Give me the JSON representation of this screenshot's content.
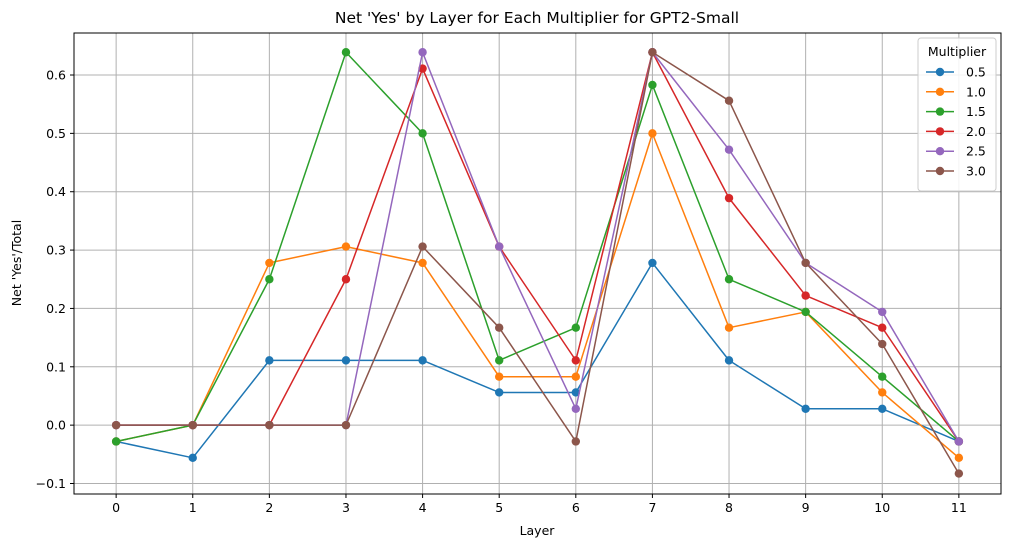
{
  "chart_data": {
    "type": "line",
    "title": "Net 'Yes' by Layer for Each Multiplier for GPT2-Small",
    "xlabel": "Layer",
    "ylabel": "Net 'Yes'/Total",
    "x": [
      0,
      1,
      2,
      3,
      4,
      5,
      6,
      7,
      8,
      9,
      10,
      11
    ],
    "xlim": [
      -0.55,
      11.55
    ],
    "ylim": [
      -0.118,
      0.672
    ],
    "yticks": [
      -0.1,
      0.0,
      0.1,
      0.2,
      0.3,
      0.4,
      0.5,
      0.6
    ],
    "ytick_labels": [
      "−0.1",
      "0.0",
      "0.1",
      "0.2",
      "0.3",
      "0.4",
      "0.5",
      "0.6"
    ],
    "grid": true,
    "legend": {
      "title": "Multiplier",
      "placement": "top-right"
    },
    "series": [
      {
        "name": "0.5",
        "color": "#1f77b4",
        "values": [
          -0.028,
          -0.056,
          0.111,
          0.111,
          0.111,
          0.056,
          0.056,
          0.278,
          0.111,
          0.028,
          0.028,
          -0.028
        ]
      },
      {
        "name": "1.0",
        "color": "#ff7f0e",
        "values": [
          -0.028,
          0.0,
          0.278,
          0.306,
          0.278,
          0.083,
          0.083,
          0.5,
          0.167,
          0.194,
          0.056,
          -0.056
        ]
      },
      {
        "name": "1.5",
        "color": "#2ca02c",
        "values": [
          -0.028,
          0.0,
          0.25,
          0.639,
          0.5,
          0.111,
          0.167,
          0.583,
          0.25,
          0.194,
          0.083,
          -0.028
        ]
      },
      {
        "name": "2.0",
        "color": "#d62728",
        "values": [
          0.0,
          0.0,
          0.0,
          0.25,
          0.611,
          0.306,
          0.111,
          0.639,
          0.389,
          0.222,
          0.167,
          -0.028
        ]
      },
      {
        "name": "2.5",
        "color": "#9467bd",
        "values": [
          0.0,
          0.0,
          0.0,
          0.0,
          0.639,
          0.306,
          0.028,
          0.639,
          0.472,
          0.278,
          0.194,
          -0.028
        ]
      },
      {
        "name": "3.0",
        "color": "#8c564b",
        "values": [
          0.0,
          0.0,
          0.0,
          0.0,
          0.306,
          0.167,
          -0.028,
          0.639,
          0.556,
          0.278,
          0.139,
          -0.083
        ]
      }
    ]
  }
}
